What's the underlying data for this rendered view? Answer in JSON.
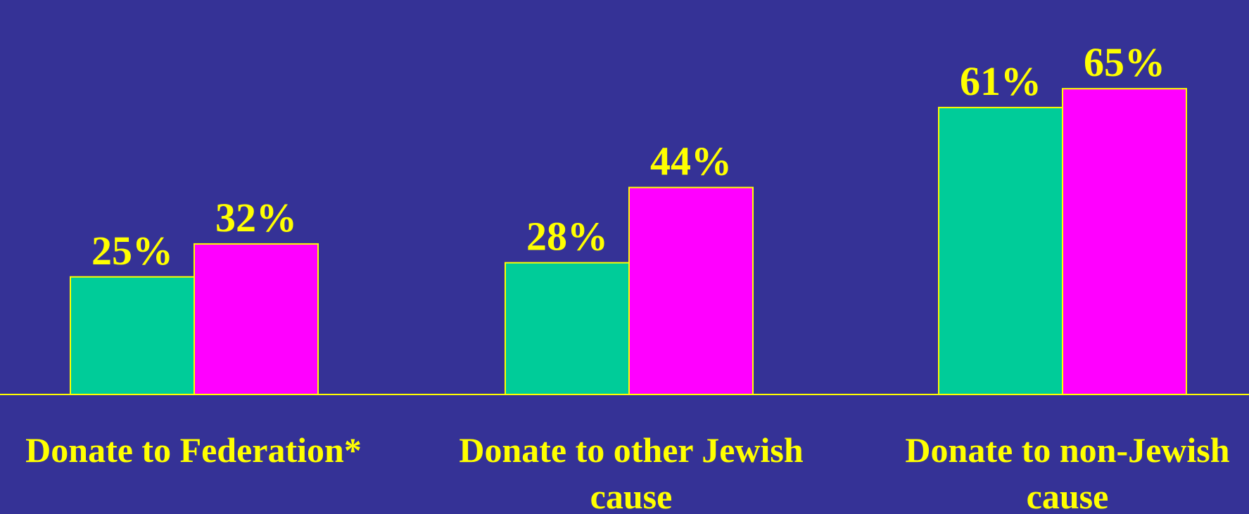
{
  "colors": {
    "background": "#353296",
    "axis": "#FFFF00",
    "text": "#FFFF00",
    "series_a": "#00CC99",
    "series_b": "#FF00FF",
    "bar_outline": "#FFFF00"
  },
  "chart_data": {
    "type": "bar",
    "categories": [
      [
        "Donate to Federation*"
      ],
      [
        "Donate to other Jewish",
        "cause"
      ],
      [
        "Donate to non-Jewish",
        "cause"
      ]
    ],
    "series": [
      {
        "values": [
          25,
          28,
          61
        ],
        "labels": [
          "25%",
          "28%",
          "61%"
        ],
        "color": "#00CC99"
      },
      {
        "values": [
          32,
          44,
          65
        ],
        "labels": [
          "32%",
          "44%",
          "65%"
        ],
        "color": "#FF00FF"
      }
    ],
    "value_unit": "%",
    "ylim": [
      0,
      65
    ],
    "grid": false,
    "legend": "none",
    "title": "",
    "xlabel": "",
    "ylabel": ""
  }
}
